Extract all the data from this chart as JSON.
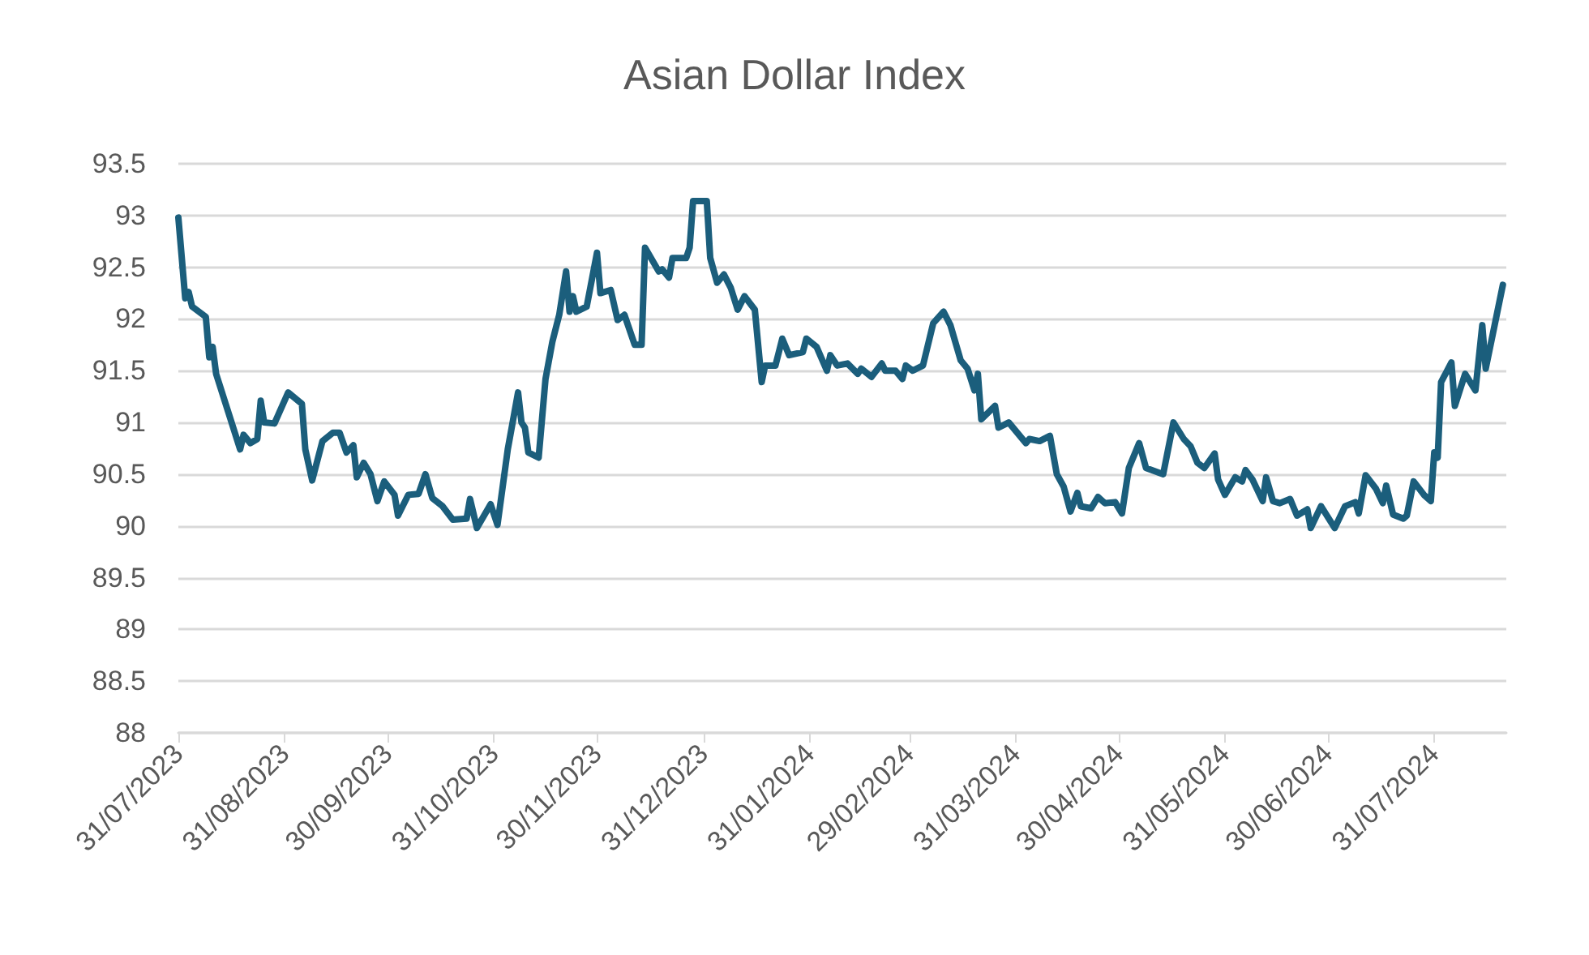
{
  "chart_data": {
    "type": "line",
    "title": "Asian Dollar Index",
    "xlim": [
      "2023-07-31",
      "2024-08-21"
    ],
    "xticks": [
      {
        "value": "2023-07-31",
        "label": "31/07/2023"
      },
      {
        "value": "2023-08-31",
        "label": "31/08/2023"
      },
      {
        "value": "2023-09-30",
        "label": "30/09/2023"
      },
      {
        "value": "2023-10-31",
        "label": "31/10/2023"
      },
      {
        "value": "2023-11-30",
        "label": "30/11/2023"
      },
      {
        "value": "2023-12-31",
        "label": "31/12/2023"
      },
      {
        "value": "2024-01-31",
        "label": "31/01/2024"
      },
      {
        "value": "2024-02-29",
        "label": "29/02/2024"
      },
      {
        "value": "2024-03-31",
        "label": "31/03/2024"
      },
      {
        "value": "2024-04-30",
        "label": "30/04/2024"
      },
      {
        "value": "2024-05-31",
        "label": "31/05/2024"
      },
      {
        "value": "2024-06-30",
        "label": "30/06/2024"
      },
      {
        "value": "2024-07-31",
        "label": "31/07/2024"
      }
    ],
    "ylim": [
      88,
      93.5
    ],
    "yticks": [
      88,
      88.5,
      89,
      89.5,
      90,
      90.5,
      91,
      91.5,
      92,
      92.5,
      93,
      93.5
    ],
    "grid": "y",
    "marker": "none",
    "line_style": "solid",
    "series": [
      {
        "color": "#1b5e7c",
        "x": [
          "2023-07-31",
          "2023-08-02",
          "2023-08-03",
          "2023-08-04",
          "2023-08-08",
          "2023-08-09",
          "2023-08-10",
          "2023-08-11",
          "2023-08-18",
          "2023-08-19",
          "2023-08-21",
          "2023-08-23",
          "2023-08-24",
          "2023-08-25",
          "2023-08-28",
          "2023-09-01",
          "2023-09-05",
          "2023-09-06",
          "2023-09-08",
          "2023-09-11",
          "2023-09-14",
          "2023-09-16",
          "2023-09-18",
          "2023-09-20",
          "2023-09-21",
          "2023-09-23",
          "2023-09-25",
          "2023-09-27",
          "2023-09-29",
          "2023-10-02",
          "2023-10-03",
          "2023-10-06",
          "2023-10-09",
          "2023-10-11",
          "2023-10-13",
          "2023-10-16",
          "2023-10-19",
          "2023-10-23",
          "2023-10-24",
          "2023-10-26",
          "2023-10-30",
          "2023-11-01",
          "2023-11-04",
          "2023-11-07",
          "2023-11-08",
          "2023-11-09",
          "2023-11-10",
          "2023-11-13",
          "2023-11-15",
          "2023-11-17",
          "2023-11-19",
          "2023-11-21",
          "2023-11-22",
          "2023-11-23",
          "2023-11-24",
          "2023-11-27",
          "2023-11-30",
          "2023-12-01",
          "2023-12-04",
          "2023-12-06",
          "2023-12-08",
          "2023-12-11",
          "2023-12-13",
          "2023-12-14",
          "2023-12-18",
          "2023-12-19",
          "2023-12-21",
          "2023-12-22",
          "2023-12-26",
          "2023-12-27",
          "2023-12-28",
          "2024-01-01",
          "2024-01-02",
          "2024-01-04",
          "2024-01-06",
          "2024-01-08",
          "2024-01-10",
          "2024-01-12",
          "2024-01-15",
          "2024-01-17",
          "2024-01-18",
          "2024-01-21",
          "2024-01-23",
          "2024-01-25",
          "2024-01-29",
          "2024-01-30",
          "2024-02-02",
          "2024-02-05",
          "2024-02-06",
          "2024-02-08",
          "2024-02-11",
          "2024-02-14",
          "2024-02-15",
          "2024-02-18",
          "2024-02-21",
          "2024-02-22",
          "2024-02-25",
          "2024-02-27",
          "2024-02-28",
          "2024-03-01",
          "2024-03-04",
          "2024-03-07",
          "2024-03-10",
          "2024-03-12",
          "2024-03-15",
          "2024-03-17",
          "2024-03-19",
          "2024-03-20",
          "2024-03-21",
          "2024-03-25",
          "2024-03-26",
          "2024-03-29",
          "2024-04-03",
          "2024-04-04",
          "2024-04-07",
          "2024-04-10",
          "2024-04-12",
          "2024-04-14",
          "2024-04-16",
          "2024-04-18",
          "2024-04-19",
          "2024-04-22",
          "2024-04-24",
          "2024-04-26",
          "2024-04-29",
          "2024-05-01",
          "2024-05-03",
          "2024-05-06",
          "2024-05-08",
          "2024-05-13",
          "2024-05-16",
          "2024-05-19",
          "2024-05-21",
          "2024-05-23",
          "2024-05-25",
          "2024-05-28",
          "2024-05-29",
          "2024-05-31",
          "2024-06-03",
          "2024-06-05",
          "2024-06-06",
          "2024-06-08",
          "2024-06-11",
          "2024-06-12",
          "2024-06-14",
          "2024-06-16",
          "2024-06-19",
          "2024-06-21",
          "2024-06-24",
          "2024-06-25",
          "2024-06-28",
          "2024-07-02",
          "2024-07-05",
          "2024-07-08",
          "2024-07-09",
          "2024-07-11",
          "2024-07-14",
          "2024-07-16",
          "2024-07-17",
          "2024-07-19",
          "2024-07-22",
          "2024-07-23",
          "2024-07-25",
          "2024-07-28",
          "2024-07-30",
          "2024-07-31",
          "2024-08-01",
          "2024-08-02",
          "2024-08-05",
          "2024-08-06",
          "2024-08-09",
          "2024-08-12",
          "2024-08-14",
          "2024-08-15",
          "2024-08-20"
        ],
        "values": [
          92.98,
          92.2,
          92.26,
          92.12,
          92.02,
          91.63,
          91.73,
          91.47,
          90.74,
          90.88,
          90.8,
          90.84,
          91.21,
          91.0,
          90.99,
          91.29,
          91.18,
          90.74,
          90.44,
          90.82,
          90.9,
          90.9,
          90.71,
          90.78,
          90.47,
          90.61,
          90.5,
          90.24,
          90.43,
          90.3,
          90.1,
          90.3,
          90.31,
          90.5,
          90.27,
          90.19,
          90.06,
          90.07,
          90.26,
          89.98,
          90.21,
          90.01,
          90.74,
          91.29,
          91.0,
          90.95,
          90.71,
          90.66,
          91.42,
          91.78,
          92.04,
          92.46,
          92.07,
          92.22,
          92.07,
          92.12,
          92.64,
          92.25,
          92.28,
          91.99,
          92.04,
          91.75,
          91.75,
          92.69,
          92.46,
          92.48,
          92.4,
          92.59,
          92.59,
          92.69,
          93.14,
          93.14,
          92.59,
          92.35,
          92.43,
          92.3,
          92.09,
          92.22,
          92.09,
          91.39,
          91.55,
          91.55,
          91.81,
          91.65,
          91.68,
          91.81,
          91.73,
          91.5,
          91.65,
          91.55,
          91.57,
          91.47,
          91.52,
          91.44,
          91.57,
          91.5,
          91.5,
          91.42,
          91.55,
          91.5,
          91.55,
          91.96,
          92.07,
          91.94,
          91.6,
          91.52,
          91.31,
          91.47,
          91.03,
          91.16,
          90.95,
          91.0,
          90.8,
          90.84,
          90.82,
          90.87,
          90.5,
          90.38,
          90.14,
          90.32,
          90.19,
          90.17,
          90.28,
          90.22,
          90.23,
          90.12,
          90.56,
          90.8,
          90.56,
          90.5,
          91.0,
          90.84,
          90.77,
          90.61,
          90.56,
          90.7,
          90.45,
          90.3,
          90.47,
          90.43,
          90.54,
          90.45,
          90.24,
          90.47,
          90.24,
          90.22,
          90.26,
          90.1,
          90.16,
          89.98,
          90.19,
          89.98,
          90.19,
          90.23,
          90.12,
          90.49,
          90.36,
          90.22,
          90.39,
          90.11,
          90.07,
          90.1,
          90.43,
          90.3,
          90.24,
          90.71,
          90.66,
          91.39,
          91.58,
          91.16,
          91.47,
          91.31,
          91.94,
          91.52,
          92.33
        ]
      }
    ]
  }
}
